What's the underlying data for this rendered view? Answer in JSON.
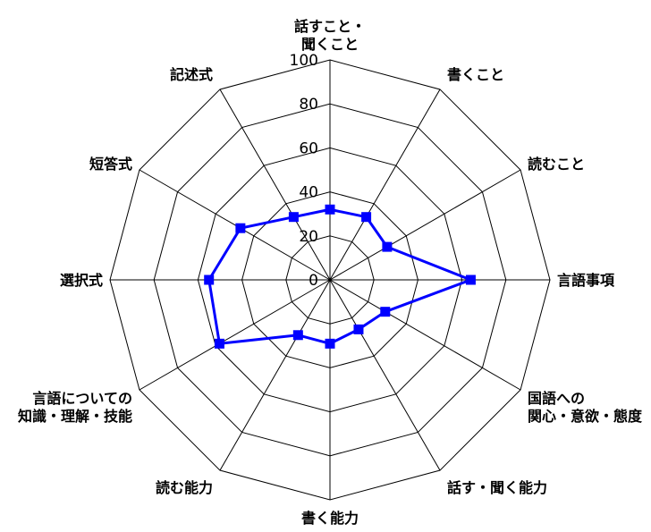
{
  "chart_data": {
    "type": "radar",
    "axes": [
      [
        "話すこと・",
        "聞くこと"
      ],
      [
        "書くこと"
      ],
      [
        "読むこと"
      ],
      [
        "言語事項"
      ],
      [
        "国語への",
        "関心・意欲・態度"
      ],
      [
        "話す・聞く能力"
      ],
      [
        "書く能力"
      ],
      [
        "読む能力"
      ],
      [
        "言語についての",
        "知識・理解・技能"
      ],
      [
        "選択式"
      ],
      [
        "短答式"
      ],
      [
        "記述式"
      ]
    ],
    "values": [
      32,
      33,
      30,
      64,
      29,
      26,
      29,
      29,
      58,
      55,
      47,
      33
    ],
    "ticks": [
      0,
      20,
      40,
      60,
      80,
      100
    ],
    "rlim": [
      0,
      100
    ],
    "grid": true,
    "legend": "none",
    "line_color": "#0000ff",
    "marker_color": "#0000ff",
    "grid_color": "#000000"
  }
}
